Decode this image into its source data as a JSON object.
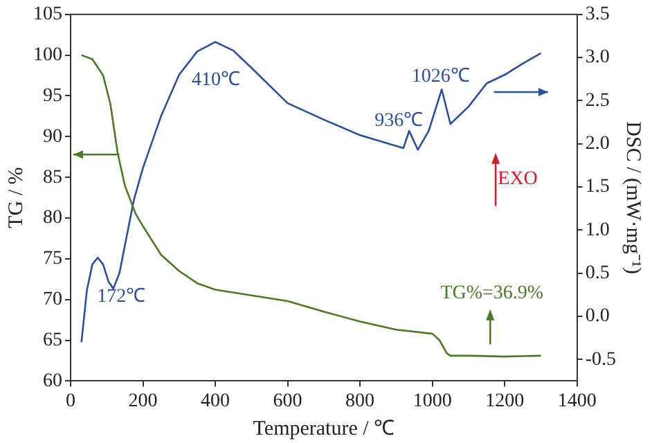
{
  "chart_data": {
    "type": "line",
    "xlabel": "Temperature / ℃",
    "ylabel": "TG / %",
    "y2label": "DSC / (mW·mg⁻¹)",
    "xlim": [
      0,
      1400
    ],
    "xticks": [
      0,
      200,
      400,
      600,
      800,
      1000,
      1200,
      1400
    ],
    "ylim": [
      60,
      105
    ],
    "yticks": [
      60,
      65,
      70,
      75,
      80,
      85,
      90,
      95,
      100,
      105
    ],
    "y2lim": [
      -0.75,
      3.5
    ],
    "y2ticks": [
      {
        "value": -0.5,
        "label": "-0.5"
      },
      {
        "value": 0,
        "label": "0.0"
      },
      0.5,
      {
        "value": 1,
        "label": "1.0"
      },
      1.5,
      {
        "value": 2,
        "label": "2.0"
      },
      2.5,
      {
        "value": 3,
        "label": "3.0"
      },
      3.5
    ],
    "grid": false,
    "legend": false,
    "marker": "none",
    "line_style": "solid",
    "series": [
      {
        "color": "#4a7a23",
        "x": [
          30,
          60,
          90,
          110,
          130,
          150,
          180,
          200,
          250,
          300,
          350,
          400,
          500,
          600,
          700,
          800,
          900,
          1000,
          1020,
          1040,
          1050,
          1100,
          1200,
          1300
        ],
        "values": [
          100,
          99.5,
          97.5,
          94,
          88,
          84,
          80.5,
          79,
          75.5,
          73.5,
          72,
          71.2,
          70.5,
          69.8,
          68.5,
          67.3,
          66.3,
          65.8,
          65,
          63.4,
          63.1,
          63.1,
          63,
          63.1
        ]
      },
      {
        "color": "#2a4ea0",
        "axis": "y2",
        "x": [
          30,
          45,
          60,
          75,
          90,
          105,
          118,
          135,
          150,
          175,
          200,
          250,
          300,
          350,
          400,
          450,
          500,
          600,
          700,
          800,
          880,
          920,
          936,
          960,
          990,
          1026,
          1050,
          1100,
          1150,
          1200,
          1250,
          1300
        ],
        "values": [
          -0.3,
          0.3,
          0.6,
          0.68,
          0.6,
          0.4,
          0.32,
          0.5,
          0.82,
          1.35,
          1.72,
          2.32,
          2.8,
          3.07,
          3.18,
          3.08,
          2.88,
          2.47,
          2.28,
          2.1,
          2,
          1.95,
          2.15,
          1.93,
          2.15,
          2.63,
          2.23,
          2.43,
          2.7,
          2.8,
          2.93,
          3.05
        ]
      }
    ],
    "annotations": [
      "410℃",
      "172℃",
      "936℃",
      "1026℃",
      "EXO",
      "TG%=36.9%"
    ]
  }
}
